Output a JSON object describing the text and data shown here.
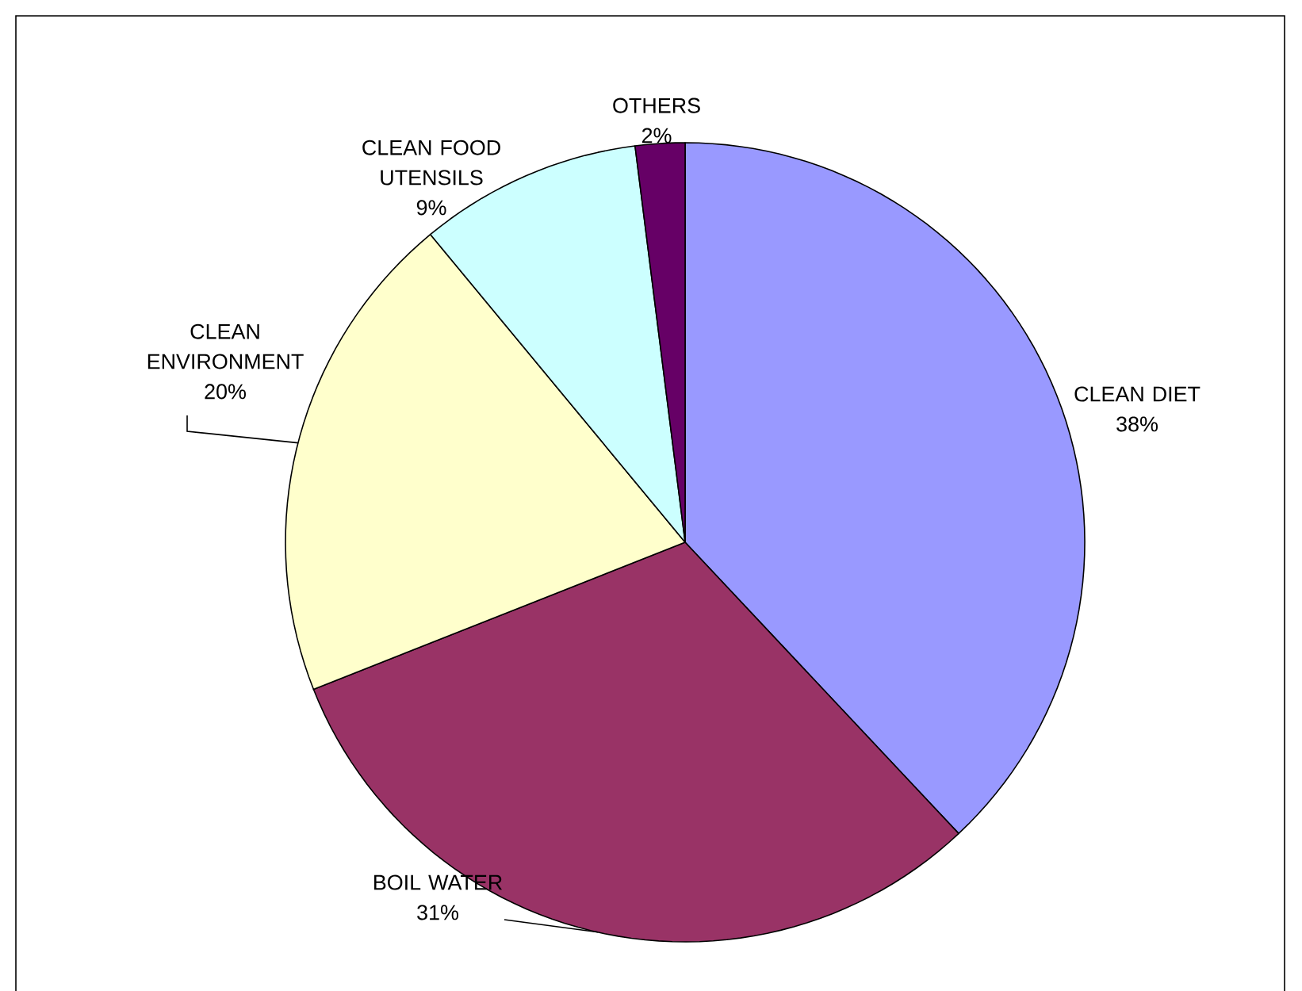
{
  "chart_data": {
    "type": "pie",
    "categories": [
      "CLEAN DIET",
      "BOIL WATER",
      "CLEAN ENVIRONMENT",
      "CLEAN FOOD UTENSILS",
      "OTHERS"
    ],
    "values": [
      38,
      31,
      20,
      9,
      2
    ],
    "value_labels": [
      "38%",
      "31%",
      "20%",
      "9%",
      "2%"
    ],
    "colors": [
      "#9999ff",
      "#993366",
      "#ffffcc",
      "#ccffff",
      "#660066"
    ]
  }
}
